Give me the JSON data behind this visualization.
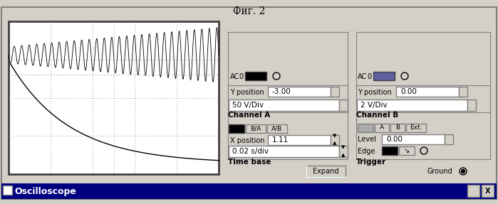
{
  "title": "Oscilloscope",
  "caption": "Фиг. 2",
  "bg_color": "#c0c0c0",
  "title_bar_color": "#000080",
  "screen_bg": "#ffffff",
  "screen_border": "#000000",
  "grid_color": "#aaaaaa",
  "curve_color": "#000000",
  "time_base": "0.02 s/div",
  "x_position": "1.11",
  "channel_a": "50 V/Div",
  "y_position_a": "-3.00",
  "channel_b": "2 V/Div",
  "y_position_b": "0.00",
  "level": "0.00",
  "fig_width": 6.99,
  "fig_height": 2.87,
  "dpi": 100
}
